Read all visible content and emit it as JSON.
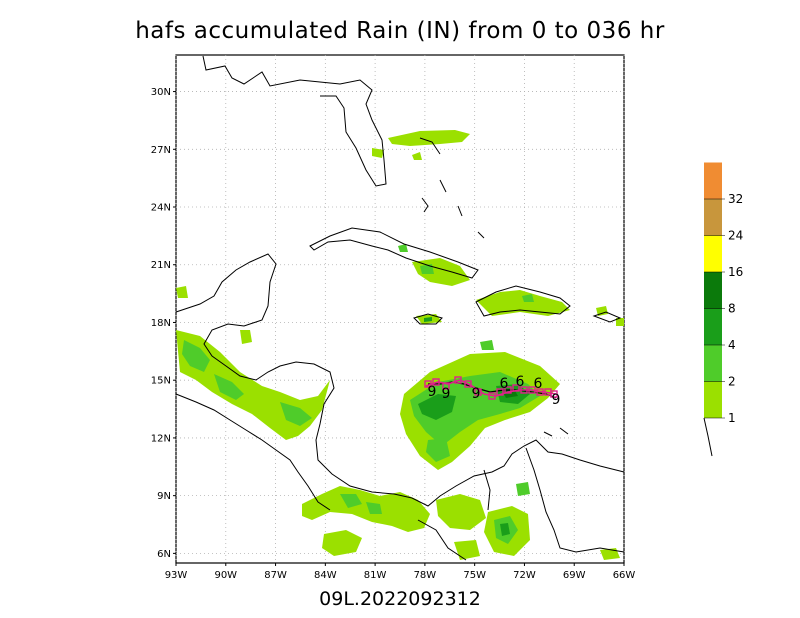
{
  "title": "hafs accumulated Rain (IN) from 0 to 036 hr",
  "footer": "09L.2022092312",
  "axes": {
    "lat_labels": [
      "30N",
      "27N",
      "24N",
      "21N",
      "18N",
      "15N",
      "12N",
      "9N",
      "6N"
    ],
    "lat_values": [
      30,
      27,
      24,
      21,
      18,
      15,
      12,
      9,
      6
    ],
    "lon_labels": [
      "93W",
      "90W",
      "87W",
      "84W",
      "81W",
      "78W",
      "75W",
      "72W",
      "69W",
      "66W"
    ],
    "lon_values": [
      -93,
      -90,
      -87,
      -84,
      -81,
      -78,
      -75,
      -72,
      -69,
      -66
    ],
    "lon_range": [
      -93,
      -66
    ],
    "lat_range": [
      5.5,
      31.9
    ]
  },
  "colorbar": {
    "labels": [
      "1",
      "2",
      "4",
      "8",
      "16",
      "24",
      "32"
    ],
    "levels": [
      1,
      2,
      4,
      8,
      16,
      24,
      32
    ],
    "colors": [
      "#9be000",
      "#4fcc2a",
      "#1a9e1a",
      "#0b7a0b",
      "#ffff00",
      "#c8963c",
      "#f08c32",
      "#c80000"
    ]
  },
  "track": {
    "storm_symbol_labels": [
      "9",
      "9",
      "9",
      "6",
      "6",
      "6",
      "9"
    ]
  }
}
